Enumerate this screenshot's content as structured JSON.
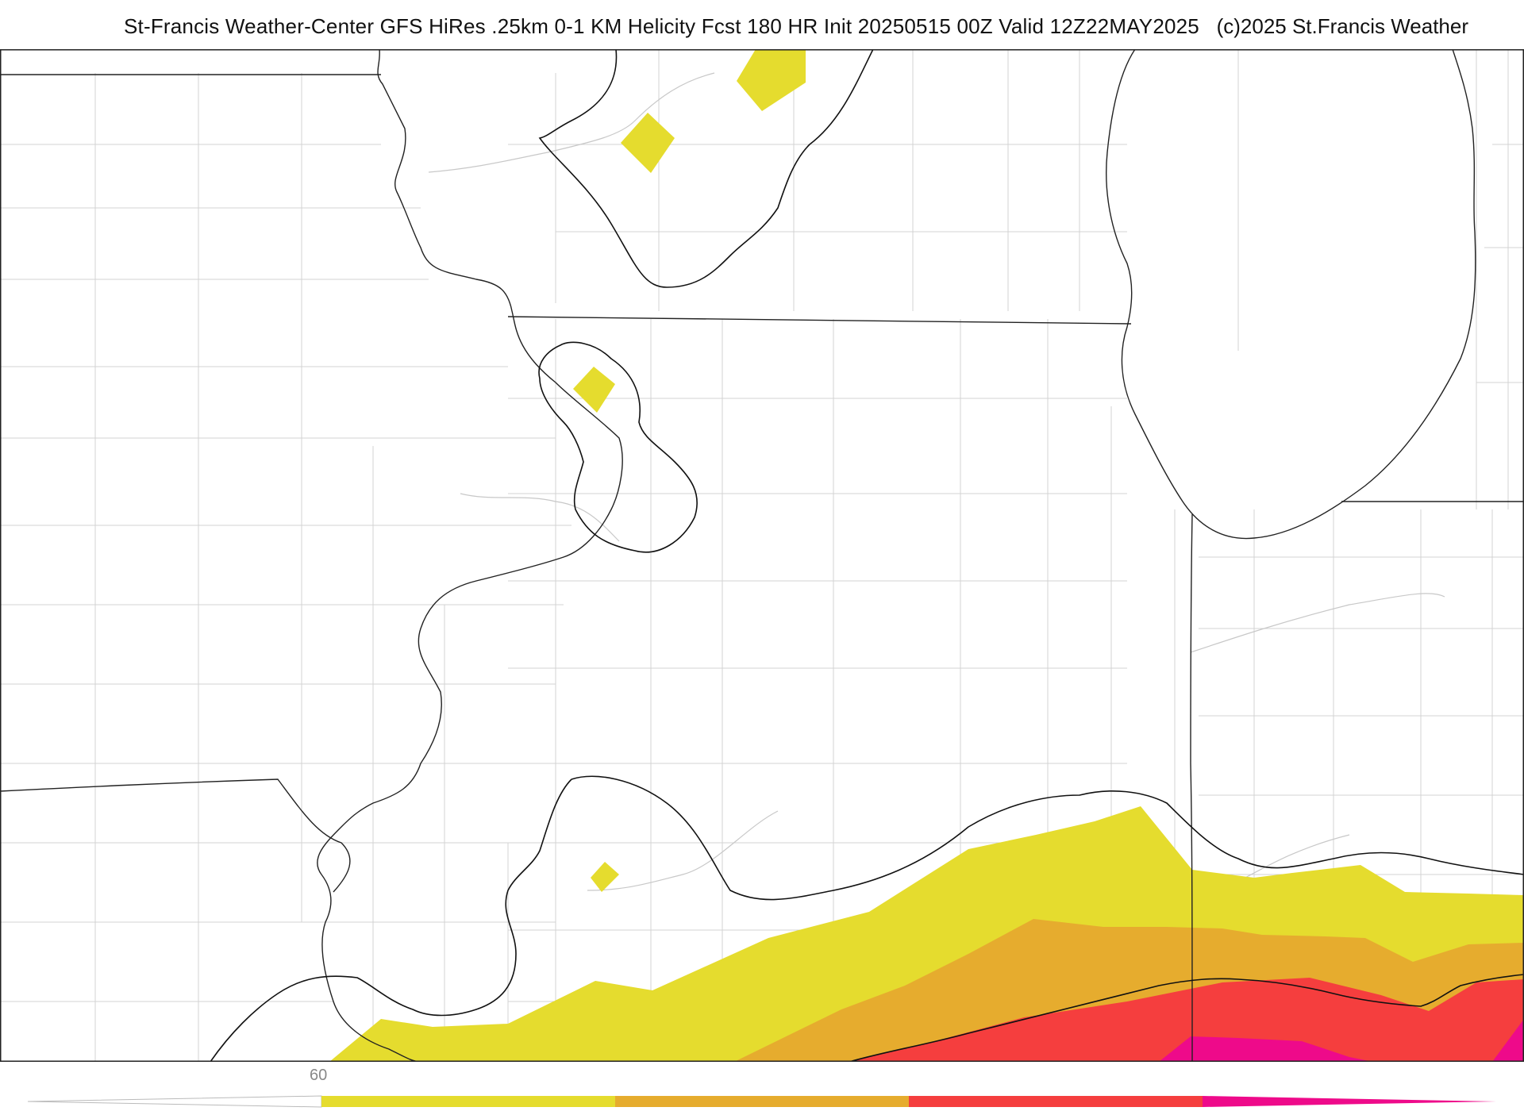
{
  "header": {
    "title": "St-Francis Weather-Center GFS HiRes .25km 0-1 KM Helicity Fcst 180 HR Init 20250515 00Z  Valid 12Z22MAY2025",
    "copyright": "(c)2025 St.Francis Weather"
  },
  "map": {
    "colors": {
      "band_1": "#e5dc2e",
      "band_2": "#e6ac2e",
      "band_3": "#f53e3e",
      "band_4": "#ee0a8a",
      "background": "#ffffff",
      "county_lines": "#cccccc",
      "state_lines": "#222222",
      "contours": "#111111"
    }
  },
  "legend": {
    "tick_label": "60",
    "colors": [
      "#e5dc2e",
      "#e6ac2e",
      "#f53e3e",
      "#ee0a8a"
    ]
  }
}
